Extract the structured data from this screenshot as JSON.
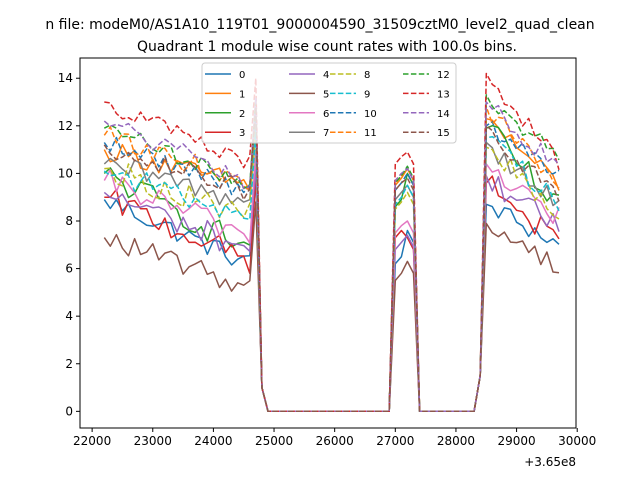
{
  "chart_data": {
    "type": "line",
    "suptitle": "n file: modeM0/AS1A10_119T01_9000004590_31509cztM0_level2_quad_clean",
    "title": "Quadrant 1 module wise count rates with 100.0s bins.",
    "xlabel": "",
    "ylabel": "",
    "x_offset_label": "+3.65e8",
    "xlim": [
      21800,
      29980
    ],
    "ylim": [
      -0.7,
      14.85
    ],
    "xticks": [
      22000,
      23000,
      24000,
      25000,
      26000,
      27000,
      28000,
      29000,
      30000
    ],
    "xtick_labels": [
      "22000",
      "23000",
      "24000",
      "25000",
      "26000",
      "27000",
      "28000",
      "29000",
      "30000"
    ],
    "yticks": [
      0,
      2,
      4,
      6,
      8,
      10,
      12,
      14
    ],
    "ytick_labels": [
      "0",
      "2",
      "4",
      "6",
      "8",
      "10",
      "12",
      "14"
    ],
    "legend_position": "upper center",
    "segments": [
      [
        22200,
        24700
      ],
      [
        27100,
        27300
      ],
      [
        28500,
        29700
      ]
    ],
    "series": [
      {
        "name": "0",
        "color": "#1f77b4",
        "dash": "solid",
        "start": [
          8.9,
          6.2,
          8.7
        ],
        "end": [
          6.2,
          7.6,
          7.0
        ],
        "noise": 0.45
      },
      {
        "name": "1",
        "color": "#ff7f0e",
        "dash": "solid",
        "start": [
          11.0,
          9.5,
          12.3
        ],
        "end": [
          9.5,
          10.2,
          9.5
        ],
        "noise": 0.45
      },
      {
        "name": "2",
        "color": "#2ca02c",
        "dash": "solid",
        "start": [
          10.0,
          8.6,
          11.9
        ],
        "end": [
          6.8,
          10.0,
          8.5
        ],
        "noise": 0.6
      },
      {
        "name": "3",
        "color": "#d62728",
        "dash": "solid",
        "start": [
          9.0,
          7.3,
          9.6
        ],
        "end": [
          6.3,
          7.3,
          7.0
        ],
        "noise": 0.55
      },
      {
        "name": "4",
        "color": "#9467bd",
        "dash": "solid",
        "start": [
          9.2,
          6.8,
          9.9
        ],
        "end": [
          6.8,
          7.4,
          7.6
        ],
        "noise": 0.55
      },
      {
        "name": "5",
        "color": "#8c564b",
        "dash": "solid",
        "start": [
          7.3,
          5.5,
          7.9
        ],
        "end": [
          5.2,
          6.3,
          6.1
        ],
        "noise": 0.45
      },
      {
        "name": "6",
        "color": "#e377c2",
        "dash": "solid",
        "start": [
          9.7,
          7.5,
          10.4
        ],
        "end": [
          7.4,
          8.0,
          8.1
        ],
        "noise": 0.55
      },
      {
        "name": "7",
        "color": "#7f7f7f",
        "dash": "solid",
        "start": [
          10.4,
          8.9,
          11.3
        ],
        "end": [
          8.8,
          9.5,
          8.7
        ],
        "noise": 0.5
      },
      {
        "name": "8",
        "color": "#bcbd22",
        "dash": "dashed",
        "start": [
          10.2,
          8.5,
          11.1
        ],
        "end": [
          8.2,
          9.2,
          8.2
        ],
        "noise": 0.55
      },
      {
        "name": "9",
        "color": "#17becf",
        "dash": "dashed",
        "start": [
          10.1,
          8.7,
          11.5
        ],
        "end": [
          8.2,
          9.5,
          8.8
        ],
        "noise": 0.5
      },
      {
        "name": "10",
        "color": "#1f77b4",
        "dash": "dashed",
        "start": [
          11.3,
          9.3,
          12.0
        ],
        "end": [
          9.3,
          10.0,
          9.8
        ],
        "noise": 0.45
      },
      {
        "name": "11",
        "color": "#ff7f0e",
        "dash": "dashed",
        "start": [
          11.6,
          9.6,
          12.8
        ],
        "end": [
          9.6,
          10.2,
          9.3
        ],
        "noise": 0.45
      },
      {
        "name": "12",
        "color": "#2ca02c",
        "dash": "dashed",
        "start": [
          11.9,
          9.6,
          13.3
        ],
        "end": [
          9.5,
          10.3,
          10.7
        ],
        "noise": 0.4
      },
      {
        "name": "13",
        "color": "#d62728",
        "dash": "dashed",
        "start": [
          13.0,
          10.4,
          14.2
        ],
        "end": [
          10.4,
          10.9,
          10.5
        ],
        "noise": 0.4
      },
      {
        "name": "14",
        "color": "#9467bd",
        "dash": "dashed",
        "start": [
          12.2,
          9.7,
          13.0
        ],
        "end": [
          9.6,
          10.2,
          10.1
        ],
        "noise": 0.45
      },
      {
        "name": "15",
        "color": "#8c564b",
        "dash": "dashed",
        "start": [
          11.2,
          9.3,
          12.0
        ],
        "end": [
          9.2,
          9.8,
          8.8
        ],
        "noise": 0.45
      }
    ]
  }
}
